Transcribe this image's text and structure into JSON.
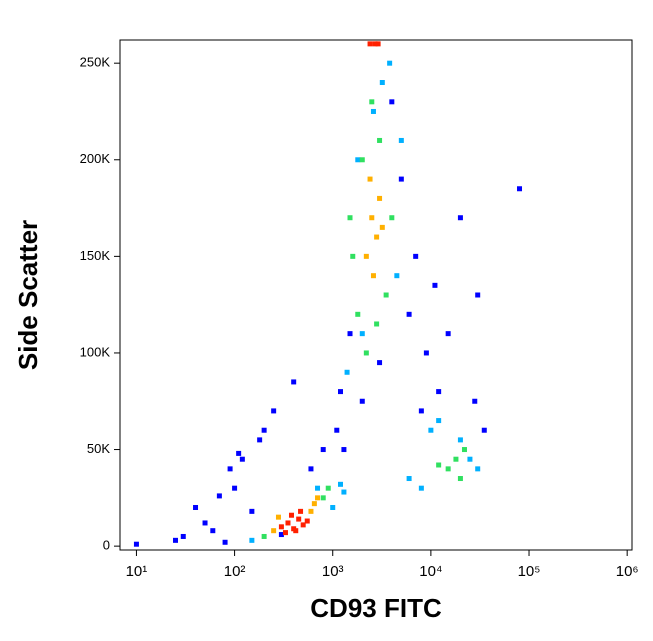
{
  "chart_data": {
    "type": "scatter",
    "x_label": "CD93 FITC",
    "y_label": "Side Scatter",
    "xscale": "log",
    "xlim": [
      6.8,
      1120000
    ],
    "xticks": [
      {
        "value": 10,
        "label": "10¹"
      },
      {
        "value": 100,
        "label": "10²"
      },
      {
        "value": 1000,
        "label": "10³"
      },
      {
        "value": 10000,
        "label": "10⁴"
      },
      {
        "value": 100000,
        "label": "10⁵"
      },
      {
        "value": 1000000,
        "label": "10⁶"
      }
    ],
    "ylim": [
      -2000,
      262000
    ],
    "yticks": [
      0,
      {
        "value": 50000,
        "label": "50K"
      },
      {
        "value": 100000,
        "label": "100K"
      },
      {
        "value": 150000,
        "label": "150K"
      },
      {
        "value": 200000,
        "label": "200K"
      },
      {
        "value": 250000,
        "label": "250K"
      }
    ],
    "series": [
      {
        "color": "#0000ff",
        "x": [
          30,
          50,
          80,
          100,
          120,
          150,
          180,
          60,
          90,
          200,
          40,
          250,
          400,
          1100,
          1200,
          1500,
          6000,
          7000,
          9000,
          11000,
          15000,
          20000,
          28000,
          35000,
          80000,
          30000,
          5000,
          4000,
          1300,
          2000,
          3000,
          8000,
          12000,
          600,
          800,
          10,
          25,
          110,
          70,
          300
        ],
        "values": [
          5000,
          12000,
          2000,
          30000,
          45000,
          18000,
          55000,
          8000,
          40000,
          60000,
          20000,
          70000,
          85000,
          60000,
          80000,
          110000,
          120000,
          150000,
          100000,
          135000,
          110000,
          170000,
          75000,
          60000,
          185000,
          130000,
          190000,
          230000,
          50000,
          75000,
          95000,
          70000,
          80000,
          40000,
          50000,
          1000,
          3000,
          48000,
          26000,
          6000
        ]
      },
      {
        "color": "#00b0ff",
        "x": [
          150,
          1200,
          1300,
          5000,
          4500,
          1400,
          3200,
          3800,
          10000,
          8000,
          25000,
          30000,
          2000,
          2600,
          1800,
          6000,
          700,
          1000,
          12000,
          20000
        ],
        "values": [
          3000,
          32000,
          28000,
          210000,
          140000,
          90000,
          240000,
          250000,
          60000,
          30000,
          45000,
          40000,
          110000,
          225000,
          200000,
          35000,
          30000,
          20000,
          65000,
          55000
        ]
      },
      {
        "color": "#30e060",
        "x": [
          200,
          800,
          900,
          1800,
          2000,
          3500,
          4000,
          1600,
          2200,
          3000,
          2500,
          15000,
          18000,
          20000,
          1500,
          2800,
          12000,
          22000
        ],
        "values": [
          5000,
          25000,
          30000,
          120000,
          200000,
          130000,
          170000,
          150000,
          100000,
          210000,
          230000,
          40000,
          45000,
          35000,
          170000,
          115000,
          42000,
          50000
        ]
      },
      {
        "color": "#ffb000",
        "x": [
          250,
          600,
          650,
          280,
          700,
          2500,
          2800,
          2200,
          3000,
          2600,
          2400,
          3200
        ],
        "values": [
          8000,
          18000,
          22000,
          15000,
          25000,
          170000,
          160000,
          150000,
          180000,
          140000,
          190000,
          165000
        ]
      },
      {
        "color": "#ff2000",
        "x": [
          300,
          350,
          400,
          450,
          500,
          380,
          420,
          550,
          330,
          470,
          2400,
          2700,
          2900
        ],
        "values": [
          10000,
          12000,
          9000,
          14000,
          11000,
          16000,
          8000,
          13000,
          7000,
          18000,
          260000,
          260000,
          260000
        ]
      }
    ]
  }
}
